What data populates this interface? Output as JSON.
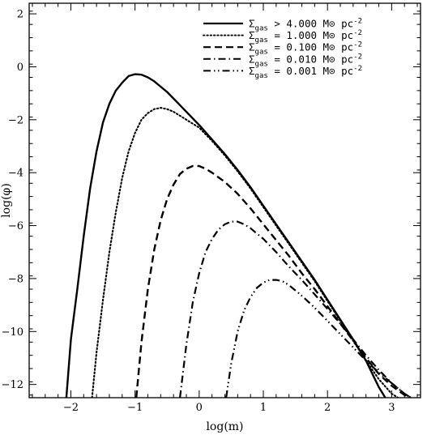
{
  "chart_data": {
    "type": "line",
    "title": "",
    "xlabel": "log(m)",
    "ylabel": "log(φ)",
    "xlim": [
      -2.65,
      3.45
    ],
    "ylim": [
      -12.5,
      2.4
    ],
    "xticks": [
      -2,
      -1,
      0,
      1,
      2,
      3
    ],
    "xtick_labels": [
      "−2",
      "−1",
      "0",
      "1",
      "2",
      "3"
    ],
    "yticks": [
      2,
      0,
      -2,
      -4,
      -6,
      -8,
      -10,
      -12
    ],
    "ytick_labels": [
      "2",
      "0",
      "−2",
      "−4",
      "−6",
      "−8",
      "−10",
      "−12"
    ],
    "grid": false,
    "legend_position": "top-right",
    "series": [
      {
        "name": "Σgas > 4.000 M⊙ pc⁻²",
        "legend": {
          "prefix": "Σ",
          "sub": "gas",
          "text": " > 4.000 M⊙ pc",
          "sup": "-2"
        },
        "dash": "solid",
        "x": [
          -2.07,
          -2.0,
          -1.9,
          -1.8,
          -1.7,
          -1.6,
          -1.5,
          -1.4,
          -1.3,
          -1.2,
          -1.1,
          -1.0,
          -0.9,
          -0.8,
          -0.7,
          -0.6,
          -0.5,
          -0.4,
          -0.3,
          -0.2,
          -0.1,
          0.0,
          0.2,
          0.4,
          0.6,
          0.8,
          1.0,
          1.2,
          1.4,
          1.6,
          1.8,
          2.0,
          2.2,
          2.4,
          2.6,
          2.7,
          2.8,
          2.9
        ],
        "y": [
          -12.5,
          -10.3,
          -8.4,
          -6.4,
          -4.6,
          -3.2,
          -2.1,
          -1.4,
          -0.9,
          -0.6,
          -0.35,
          -0.28,
          -0.3,
          -0.4,
          -0.55,
          -0.75,
          -0.95,
          -1.2,
          -1.45,
          -1.7,
          -1.95,
          -2.2,
          -2.75,
          -3.3,
          -3.9,
          -4.55,
          -5.25,
          -5.95,
          -6.65,
          -7.35,
          -8.05,
          -8.8,
          -9.55,
          -10.3,
          -11.1,
          -11.6,
          -12.1,
          -12.5
        ]
      },
      {
        "name": "Σgas = 1.000 M⊙ pc⁻²",
        "legend": {
          "prefix": "Σ",
          "sub": "gas",
          "text": " = 1.000 M⊙ pc",
          "sup": "-2"
        },
        "dash": "dotted",
        "x": [
          -1.67,
          -1.6,
          -1.5,
          -1.4,
          -1.3,
          -1.2,
          -1.1,
          -1.0,
          -0.9,
          -0.8,
          -0.7,
          -0.6,
          -0.5,
          -0.4,
          -0.3,
          -0.2,
          -0.1,
          0.0,
          0.2,
          0.4,
          0.6,
          0.8,
          1.0,
          1.2,
          1.4,
          1.6,
          1.8,
          2.0,
          2.2,
          2.4,
          2.6,
          2.8,
          3.0,
          3.1
        ],
        "y": [
          -12.5,
          -10.8,
          -8.8,
          -7.0,
          -5.5,
          -4.2,
          -3.2,
          -2.5,
          -2.0,
          -1.75,
          -1.6,
          -1.55,
          -1.6,
          -1.7,
          -1.85,
          -2.0,
          -2.15,
          -2.3,
          -2.8,
          -3.35,
          -3.95,
          -4.6,
          -5.3,
          -6.0,
          -6.7,
          -7.4,
          -8.1,
          -8.85,
          -9.6,
          -10.35,
          -11.1,
          -11.8,
          -12.35,
          -12.5
        ]
      },
      {
        "name": "Σgas = 0.100 M⊙ pc⁻²",
        "legend": {
          "prefix": "Σ",
          "sub": "gas",
          "text": " = 0.100 M⊙ pc",
          "sup": "-2"
        },
        "dash": "dashed",
        "x": [
          -0.98,
          -0.9,
          -0.8,
          -0.7,
          -0.6,
          -0.5,
          -0.4,
          -0.3,
          -0.2,
          -0.1,
          0.0,
          0.1,
          0.2,
          0.4,
          0.6,
          0.8,
          1.0,
          1.2,
          1.4,
          1.6,
          1.8,
          2.0,
          2.2,
          2.4,
          2.6,
          2.8,
          3.0,
          3.2,
          3.3
        ],
        "y": [
          -12.5,
          -10.4,
          -8.4,
          -6.9,
          -5.8,
          -5.0,
          -4.45,
          -4.05,
          -3.85,
          -3.75,
          -3.75,
          -3.85,
          -4.0,
          -4.35,
          -4.8,
          -5.35,
          -5.95,
          -6.55,
          -7.15,
          -7.8,
          -8.4,
          -9.05,
          -9.7,
          -10.35,
          -11.0,
          -11.6,
          -12.05,
          -12.4,
          -12.5
        ]
      },
      {
        "name": "Σgas = 0.010 M⊙ pc⁻²",
        "legend": {
          "prefix": "Σ",
          "sub": "gas",
          "text": " = 0.010 M⊙ pc",
          "sup": "-2"
        },
        "dash": "dashdot",
        "x": [
          -0.3,
          -0.2,
          -0.1,
          0.0,
          0.1,
          0.2,
          0.3,
          0.4,
          0.5,
          0.6,
          0.7,
          0.8,
          0.9,
          1.0,
          1.2,
          1.4,
          1.6,
          1.8,
          2.0,
          2.2,
          2.4,
          2.6,
          2.8,
          3.0,
          3.2,
          3.3
        ],
        "y": [
          -12.5,
          -10.5,
          -8.9,
          -7.8,
          -7.0,
          -6.5,
          -6.15,
          -5.95,
          -5.85,
          -5.85,
          -5.95,
          -6.1,
          -6.3,
          -6.5,
          -7.0,
          -7.55,
          -8.05,
          -8.6,
          -9.15,
          -9.7,
          -10.3,
          -10.9,
          -11.45,
          -11.95,
          -12.35,
          -12.5
        ]
      },
      {
        "name": "Σgas = 0.001 M⊙ pc⁻²",
        "legend": {
          "prefix": "Σ",
          "sub": "gas",
          "text": " = 0.001 M⊙ pc",
          "sup": "-2"
        },
        "dash": "dashdotdot",
        "x": [
          0.42,
          0.5,
          0.6,
          0.7,
          0.8,
          0.9,
          1.0,
          1.1,
          1.2,
          1.3,
          1.4,
          1.5,
          1.6,
          1.8,
          2.0,
          2.2,
          2.4,
          2.6,
          2.8,
          3.0,
          3.2,
          3.3
        ],
        "y": [
          -12.5,
          -11.2,
          -10.0,
          -9.2,
          -8.7,
          -8.35,
          -8.15,
          -8.05,
          -8.05,
          -8.1,
          -8.25,
          -8.45,
          -8.65,
          -9.1,
          -9.6,
          -10.1,
          -10.6,
          -11.1,
          -11.55,
          -11.95,
          -12.35,
          -12.5
        ]
      }
    ]
  }
}
